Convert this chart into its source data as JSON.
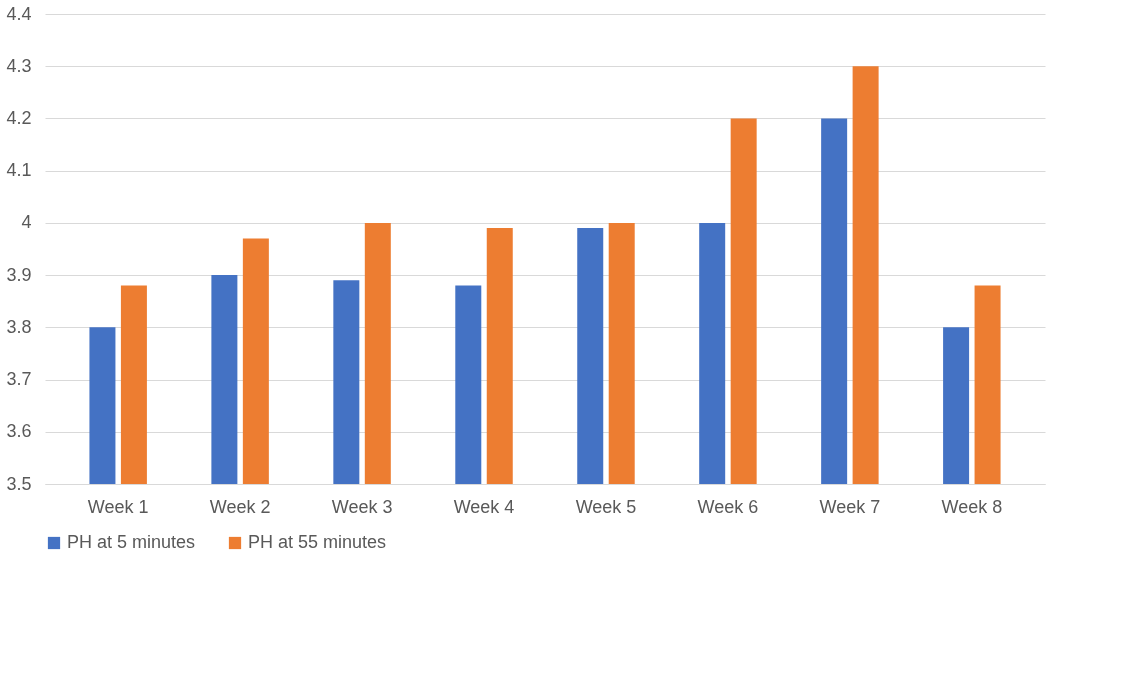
{
  "chart_data": {
    "type": "bar",
    "categories": [
      "Week 1",
      "Week 2",
      "Week 3",
      "Week 4",
      "Week 5",
      "Week 6",
      "Week 7",
      "Week 8"
    ],
    "series": [
      {
        "name": "PH at 5 minutes",
        "color": "#4472c4",
        "values": [
          3.8,
          3.9,
          3.89,
          3.88,
          3.99,
          4.0,
          4.2,
          3.8
        ]
      },
      {
        "name": "PH at 55 minutes",
        "color": "#ed7d31",
        "values": [
          3.88,
          3.97,
          4.0,
          3.99,
          4.0,
          4.2,
          4.3,
          3.88
        ]
      }
    ],
    "ylim": [
      3.5,
      4.4
    ],
    "yticks": [
      3.5,
      3.6,
      3.7,
      3.8,
      3.9,
      4,
      4.1,
      4.2,
      4.3,
      4.4
    ],
    "grid": "y",
    "legend": "bottom"
  }
}
